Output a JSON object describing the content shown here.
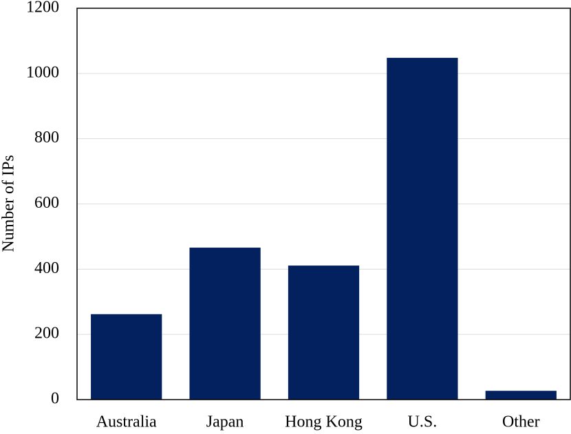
{
  "chart_data": {
    "type": "bar",
    "y_label": "Number of IPs",
    "categories": [
      "Australia",
      "Japan",
      "Hong Kong",
      "U.S.",
      "Other"
    ],
    "values": [
      262,
      466,
      411,
      1048,
      27
    ],
    "color": "#03215e",
    "ylim": [
      0,
      1200
    ],
    "yticks": [
      0,
      200,
      400,
      600,
      800,
      1000,
      1200
    ],
    "grid": true
  }
}
